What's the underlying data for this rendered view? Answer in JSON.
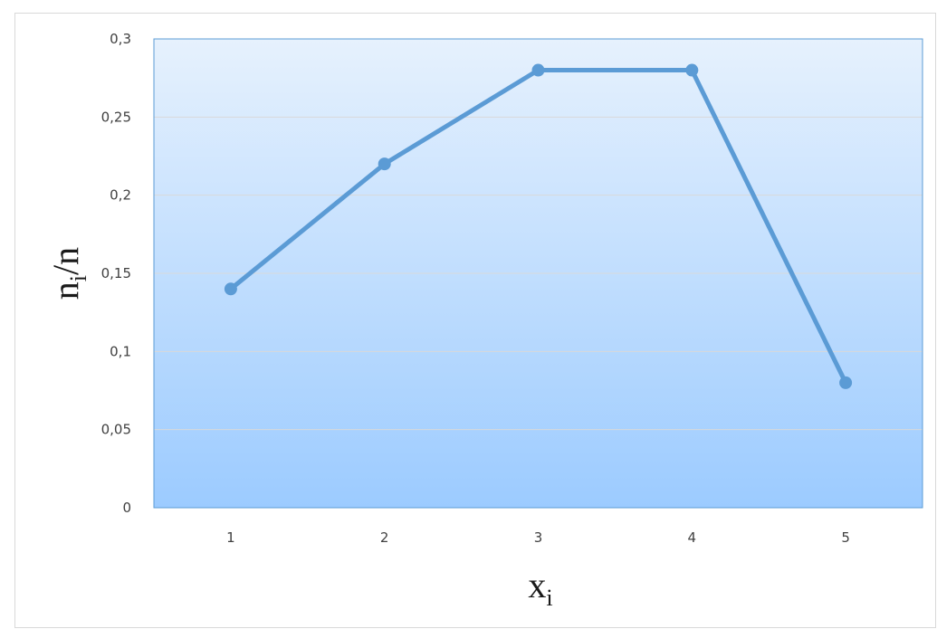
{
  "chart_data": {
    "type": "line",
    "title": "",
    "xlabel": "x",
    "xlabel_sub": "i",
    "ylabel": "n",
    "ylabel_sub": "i",
    "ylabel_suffix": "/n",
    "categories": [
      "1",
      "2",
      "3",
      "4",
      "5"
    ],
    "series": [
      {
        "values": [
          0.14,
          0.22,
          0.28,
          0.28,
          0.08
        ]
      }
    ],
    "ylim": [
      0,
      0.3
    ],
    "yticks": [
      0,
      0.05,
      0.1,
      0.15,
      0.2,
      0.25,
      0.3
    ],
    "ytick_labels": [
      "0",
      "0,05",
      "0,1",
      "0,15",
      "0,2",
      "0,25",
      "0,3"
    ],
    "grid": true,
    "legend": "none",
    "colors": {
      "line": "#5b9bd5",
      "plot_bg_top": "#e6f1fd",
      "plot_bg_bottom": "#9ccbff",
      "plot_border": "#5b9bd5",
      "gridline": "#d9d9d9"
    }
  }
}
